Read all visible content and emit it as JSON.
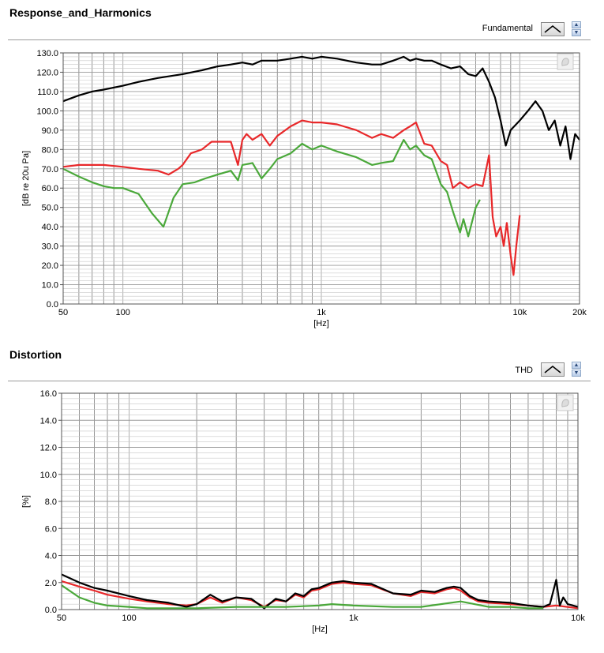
{
  "charts": [
    {
      "title": "Response_and_Harmonics",
      "legend_label": "Fundamental",
      "icons": {
        "plot_style": "line-shape-icon",
        "spin_up": "spin-up-icon",
        "spin_down": "spin-down-icon",
        "corner": "graph-palette-icon"
      }
    },
    {
      "title": "Distortion",
      "legend_label": "THD",
      "icons": {
        "plot_style": "line-shape-icon",
        "spin_up": "spin-up-icon",
        "spin_down": "spin-down-icon",
        "corner": "graph-palette-icon"
      }
    }
  ],
  "chart_data": [
    {
      "type": "line",
      "title": "Response_and_Harmonics",
      "xlabel": "[Hz]",
      "ylabel": "[dB re 20u Pa]",
      "xscale": "log",
      "xlim": [
        50,
        20000
      ],
      "ylim": [
        0,
        130
      ],
      "grid": true,
      "x_ticks": [
        {
          "value": 50,
          "label": "50"
        },
        {
          "value": 100,
          "label": "100"
        },
        {
          "value": 1000,
          "label": "1k"
        },
        {
          "value": 10000,
          "label": "10k"
        },
        {
          "value": 20000,
          "label": "20k"
        }
      ],
      "y_ticks": [
        {
          "value": 0,
          "label": "0.0"
        },
        {
          "value": 10,
          "label": "10.0"
        },
        {
          "value": 20,
          "label": "20.0"
        },
        {
          "value": 30,
          "label": "30.0"
        },
        {
          "value": 40,
          "label": "40.0"
        },
        {
          "value": 50,
          "label": "50.0"
        },
        {
          "value": 60,
          "label": "60.0"
        },
        {
          "value": 70,
          "label": "70.0"
        },
        {
          "value": 80,
          "label": "80.0"
        },
        {
          "value": 90,
          "label": "90.0"
        },
        {
          "value": 100,
          "label": "100.0"
        },
        {
          "value": 110,
          "label": "110.0"
        },
        {
          "value": 120,
          "label": "120.0"
        },
        {
          "value": 130,
          "label": "130.0"
        }
      ],
      "series": [
        {
          "color": "#000000",
          "x": [
            50,
            60,
            70,
            80,
            100,
            120,
            150,
            200,
            250,
            300,
            350,
            400,
            450,
            500,
            550,
            600,
            700,
            800,
            900,
            1000,
            1200,
            1500,
            1800,
            2000,
            2300,
            2600,
            2800,
            3000,
            3300,
            3600,
            4000,
            4500,
            5000,
            5500,
            6000,
            6500,
            7000,
            7500,
            8000,
            8500,
            9000,
            10000,
            11000,
            12000,
            13000,
            14000,
            15000,
            16000,
            17000,
            18000,
            19000,
            20000
          ],
          "y": [
            105,
            108,
            110,
            111,
            113,
            115,
            117,
            119,
            121,
            123,
            124,
            125,
            124,
            126,
            126,
            126,
            127,
            128,
            127,
            128,
            127,
            125,
            124,
            124,
            126,
            128,
            126,
            127,
            126,
            126,
            124,
            122,
            123,
            119,
            118,
            122,
            115,
            107,
            95,
            82,
            90,
            95,
            100,
            105,
            100,
            90,
            95,
            82,
            92,
            75,
            88,
            85
          ]
        },
        {
          "color": "#e8282a",
          "x": [
            50,
            60,
            70,
            80,
            100,
            120,
            150,
            170,
            190,
            200,
            220,
            250,
            280,
            300,
            350,
            380,
            400,
            420,
            450,
            500,
            550,
            600,
            700,
            800,
            900,
            1000,
            1200,
            1500,
            1800,
            2000,
            2300,
            2600,
            2800,
            3000,
            3300,
            3600,
            4000,
            4300,
            4600,
            5000,
            5500,
            6000,
            6500,
            7000,
            7300,
            7600,
            8000,
            8300,
            8600,
            9000,
            9300,
            9600,
            10000
          ],
          "y": [
            71,
            72,
            72,
            72,
            71,
            70,
            69,
            67,
            70,
            72,
            78,
            80,
            84,
            84,
            84,
            72,
            85,
            88,
            85,
            88,
            82,
            87,
            92,
            95,
            94,
            94,
            93,
            90,
            86,
            88,
            86,
            90,
            92,
            94,
            83,
            82,
            74,
            72,
            60,
            63,
            60,
            62,
            61,
            77,
            45,
            35,
            40,
            30,
            42,
            25,
            15,
            30,
            46
          ]
        },
        {
          "color": "#4aa83a",
          "x": [
            50,
            60,
            70,
            80,
            90,
            100,
            120,
            140,
            160,
            180,
            200,
            230,
            260,
            300,
            350,
            380,
            400,
            450,
            500,
            550,
            600,
            700,
            800,
            900,
            1000,
            1200,
            1500,
            1800,
            2000,
            2300,
            2600,
            2800,
            3000,
            3300,
            3600,
            4000,
            4300,
            4600,
            5000,
            5200,
            5500,
            6000,
            6300
          ],
          "y": [
            70,
            66,
            63,
            61,
            60,
            60,
            57,
            47,
            40,
            55,
            62,
            63,
            65,
            67,
            69,
            64,
            72,
            73,
            65,
            70,
            75,
            78,
            83,
            80,
            82,
            79,
            76,
            72,
            73,
            74,
            85,
            80,
            82,
            77,
            75,
            62,
            58,
            48,
            37,
            44,
            35,
            50,
            54
          ]
        }
      ]
    },
    {
      "type": "line",
      "title": "Distortion",
      "xlabel": "[Hz]",
      "ylabel": "[%]",
      "xscale": "log",
      "xlim": [
        50,
        10000
      ],
      "ylim": [
        0,
        16
      ],
      "grid": true,
      "x_ticks": [
        {
          "value": 50,
          "label": "50"
        },
        {
          "value": 100,
          "label": "100"
        },
        {
          "value": 1000,
          "label": "1k"
        },
        {
          "value": 10000,
          "label": "10k"
        }
      ],
      "y_ticks": [
        {
          "value": 0,
          "label": "0.0"
        },
        {
          "value": 2,
          "label": "2.0"
        },
        {
          "value": 4,
          "label": "4.0"
        },
        {
          "value": 6,
          "label": "6.0"
        },
        {
          "value": 8,
          "label": "8.0"
        },
        {
          "value": 10,
          "label": "10.0"
        },
        {
          "value": 12,
          "label": "12.0"
        },
        {
          "value": 14,
          "label": "14.0"
        },
        {
          "value": 16,
          "label": "16.0"
        }
      ],
      "series": [
        {
          "color": "#e8282a",
          "x": [
            50,
            60,
            70,
            80,
            100,
            120,
            150,
            180,
            200,
            230,
            260,
            300,
            350,
            400,
            450,
            500,
            550,
            600,
            650,
            700,
            800,
            900,
            1000,
            1200,
            1500,
            1800,
            2000,
            2300,
            2600,
            2800,
            3000,
            3300,
            3600,
            4000,
            5000,
            6000,
            7000,
            8000,
            9000,
            10000
          ],
          "y": [
            2.1,
            1.7,
            1.4,
            1.1,
            0.8,
            0.6,
            0.4,
            0.3,
            0.4,
            0.9,
            0.5,
            0.9,
            0.7,
            0.2,
            0.7,
            0.6,
            1.1,
            0.9,
            1.4,
            1.5,
            1.9,
            2.0,
            1.9,
            1.8,
            1.2,
            1.0,
            1.3,
            1.2,
            1.5,
            1.6,
            1.4,
            0.9,
            0.6,
            0.5,
            0.4,
            0.3,
            0.2,
            0.3,
            0.2,
            0.1
          ]
        },
        {
          "color": "#000000",
          "x": [
            50,
            60,
            70,
            80,
            100,
            120,
            150,
            180,
            200,
            230,
            260,
            300,
            350,
            400,
            450,
            500,
            550,
            600,
            650,
            700,
            800,
            900,
            1000,
            1200,
            1500,
            1800,
            2000,
            2300,
            2600,
            2800,
            3000,
            3300,
            3600,
            4000,
            5000,
            6000,
            7000,
            7500,
            8000,
            8300,
            8600,
            9000,
            10000
          ],
          "y": [
            2.6,
            2.0,
            1.6,
            1.4,
            1.0,
            0.7,
            0.5,
            0.2,
            0.4,
            1.1,
            0.6,
            0.9,
            0.8,
            0.1,
            0.8,
            0.6,
            1.2,
            1.0,
            1.5,
            1.6,
            2.0,
            2.1,
            2.0,
            1.9,
            1.2,
            1.1,
            1.4,
            1.3,
            1.6,
            1.7,
            1.6,
            1.0,
            0.7,
            0.6,
            0.5,
            0.3,
            0.2,
            0.4,
            2.2,
            0.3,
            0.9,
            0.4,
            0.2
          ]
        },
        {
          "color": "#4aa83a",
          "x": [
            50,
            60,
            70,
            80,
            100,
            120,
            150,
            200,
            300,
            500,
            700,
            800,
            1000,
            1500,
            2000,
            3000,
            4000,
            5000,
            6000,
            7000
          ],
          "y": [
            1.8,
            0.9,
            0.5,
            0.3,
            0.2,
            0.1,
            0.1,
            0.1,
            0.2,
            0.2,
            0.3,
            0.4,
            0.3,
            0.2,
            0.2,
            0.6,
            0.2,
            0.2,
            0.1,
            0.1
          ]
        }
      ]
    }
  ]
}
